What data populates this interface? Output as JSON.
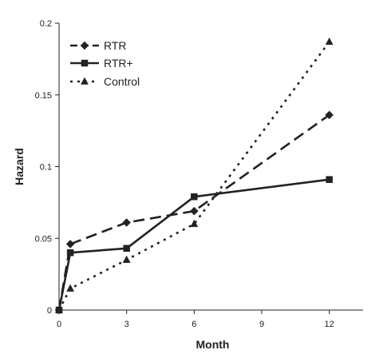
{
  "chart_data": {
    "type": "line",
    "title": "",
    "xlabel": "Month",
    "ylabel": "Hazard",
    "xlim": [
      0,
      13.5
    ],
    "ylim": [
      0,
      0.2
    ],
    "xticks": [
      0,
      3,
      6,
      9,
      12
    ],
    "yticks": [
      0,
      0.05,
      0.1,
      0.15,
      0.2
    ],
    "xtick_labels": [
      "0",
      "3",
      "6",
      "9",
      "12"
    ],
    "ytick_labels": [
      "0",
      "0.05",
      "0.1",
      "0.15",
      "0.2"
    ],
    "grid": false,
    "legend_position": "top-left",
    "series": [
      {
        "name": "RTR",
        "dash": "long-dash",
        "marker": "diamond",
        "x": [
          0,
          0.5,
          3,
          6,
          12
        ],
        "y": [
          0,
          0.046,
          0.061,
          0.069,
          0.136
        ]
      },
      {
        "name": "RTR+",
        "dash": "solid",
        "marker": "square",
        "x": [
          0,
          0.5,
          3,
          6,
          12
        ],
        "y": [
          0,
          0.04,
          0.043,
          0.079,
          0.091
        ]
      },
      {
        "name": "Control",
        "dash": "dotted",
        "marker": "triangle",
        "x": [
          0,
          0.5,
          3,
          6,
          12
        ],
        "y": [
          0,
          0.015,
          0.035,
          0.06,
          0.187
        ]
      }
    ]
  }
}
